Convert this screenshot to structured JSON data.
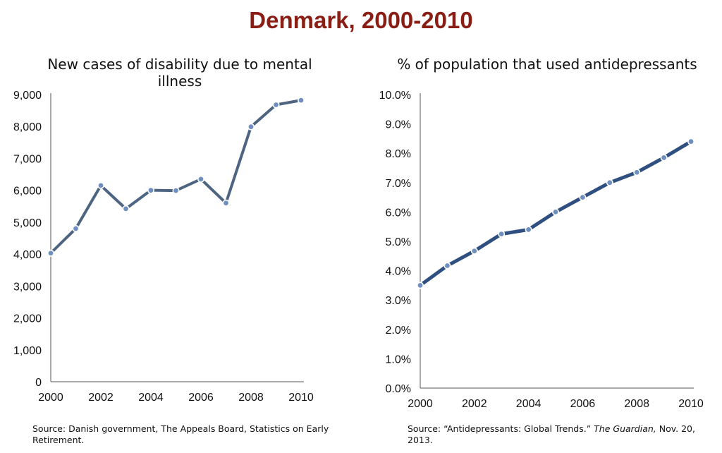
{
  "page": {
    "title": "Denmark, 2000-2010",
    "colors": {
      "title": "#8b1e14",
      "line_left": "#4e6582",
      "line_right": "#2f4f80",
      "marker": "#6f8fbf"
    }
  },
  "chart_data": [
    {
      "type": "line",
      "title": "New cases of disability due to mental illness",
      "x": [
        2000,
        2001,
        2002,
        2003,
        2004,
        2005,
        2006,
        2007,
        2008,
        2009,
        2010
      ],
      "series": [
        {
          "values": [
            4030,
            4800,
            6150,
            5420,
            6000,
            5990,
            6350,
            5600,
            7990,
            8680,
            8820
          ]
        }
      ],
      "ylim": [
        0,
        9000
      ],
      "yticks": [
        "0",
        "1,000",
        "2,000",
        "3,000",
        "4,000",
        "5,000",
        "6,000",
        "7,000",
        "8,000",
        "9,000"
      ],
      "xticks": [
        "2000",
        "2002",
        "2004",
        "2006",
        "2008",
        "2010"
      ],
      "grid": false,
      "source": {
        "prefix": "Source: Danish government, The Appeals Board, Statistics on Early Retirement."
      }
    },
    {
      "type": "line",
      "title": "% of population that used antidepressants",
      "x": [
        2000,
        2001,
        2002,
        2003,
        2004,
        2005,
        2006,
        2007,
        2008,
        2009,
        2010
      ],
      "series": [
        {
          "values": [
            3.5,
            4.17,
            4.67,
            5.25,
            5.4,
            6.0,
            6.5,
            7.0,
            7.35,
            7.85,
            8.4
          ]
        }
      ],
      "ylim": [
        0,
        10
      ],
      "yticks": [
        "0.0%",
        "1.0%",
        "2.0%",
        "3.0%",
        "4.0%",
        "5.0%",
        "6.0%",
        "7.0%",
        "8.0%",
        "9.0%",
        "10.0%"
      ],
      "xticks": [
        "2000",
        "2002",
        "2004",
        "2006",
        "2008",
        "2010"
      ],
      "grid": false,
      "source": {
        "prefix": "Source:  “Antidepressants: Global Trends.”",
        "italic": "The Guardian,",
        "suffix": "Nov. 20, 2013."
      }
    }
  ]
}
